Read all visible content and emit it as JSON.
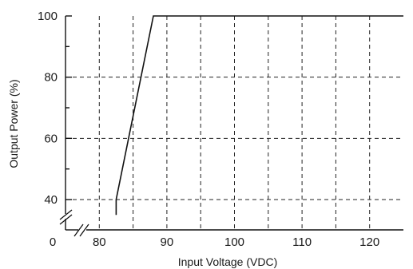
{
  "chart_data": {
    "type": "line",
    "title": "",
    "xlabel": "Input Voltage (VDC)",
    "ylabel": "Output Power (%)",
    "xlim": [
      75,
      125
    ],
    "ylim": [
      40,
      100
    ],
    "x_ticks": [
      80,
      90,
      100,
      110,
      120
    ],
    "y_ticks": [
      40,
      60,
      80,
      100
    ],
    "x_grid": [
      75,
      80,
      85,
      90,
      95,
      100,
      105,
      110,
      115,
      120,
      125
    ],
    "y_grid": [
      40,
      60,
      80,
      100
    ],
    "origin_label": "0",
    "axis_break": true,
    "grid": "dashed",
    "series": [
      {
        "x": [
          82.5,
          82.5,
          88,
          125
        ],
        "y": [
          35,
          40,
          100,
          100
        ]
      }
    ]
  }
}
